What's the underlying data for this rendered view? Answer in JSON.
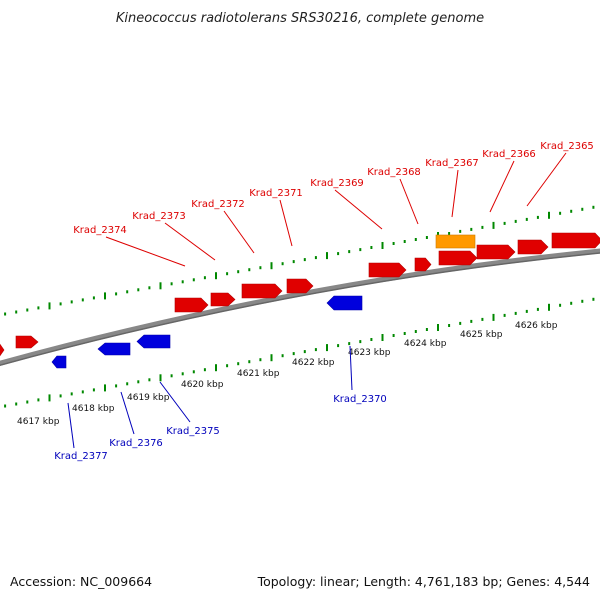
{
  "title": "Kineococcus radiotolerans SRS30216, complete genome",
  "footer": {
    "accession": "Accession: NC_009664",
    "summary": "Topology: linear; Length: 4,761,183 bp; Genes: 4,544"
  },
  "colors": {
    "forward_gene": "#e00000",
    "reverse_gene": "#0000dd",
    "highlight_gene": "#ff9900",
    "tick": "#008800",
    "backbone": "#888888",
    "forward_label": "#dd0000",
    "reverse_label": "#0000bb"
  },
  "kbp_labels": [
    "4617 kbp",
    "4618 kbp",
    "4619 kbp",
    "4620 kbp",
    "4621 kbp",
    "4622 kbp",
    "4623 kbp",
    "4624 kbp",
    "4625 kbp",
    "4626 kbp"
  ],
  "forward_gene_labels": [
    "Krad_2374",
    "Krad_2373",
    "Krad_2372",
    "Krad_2371",
    "Krad_2369",
    "Krad_2368",
    "Krad_2367",
    "Krad_2366",
    "Krad_2365"
  ],
  "reverse_gene_labels": [
    "Krad_2370",
    "Krad_2375",
    "Krad_2376",
    "Krad_2377"
  ]
}
